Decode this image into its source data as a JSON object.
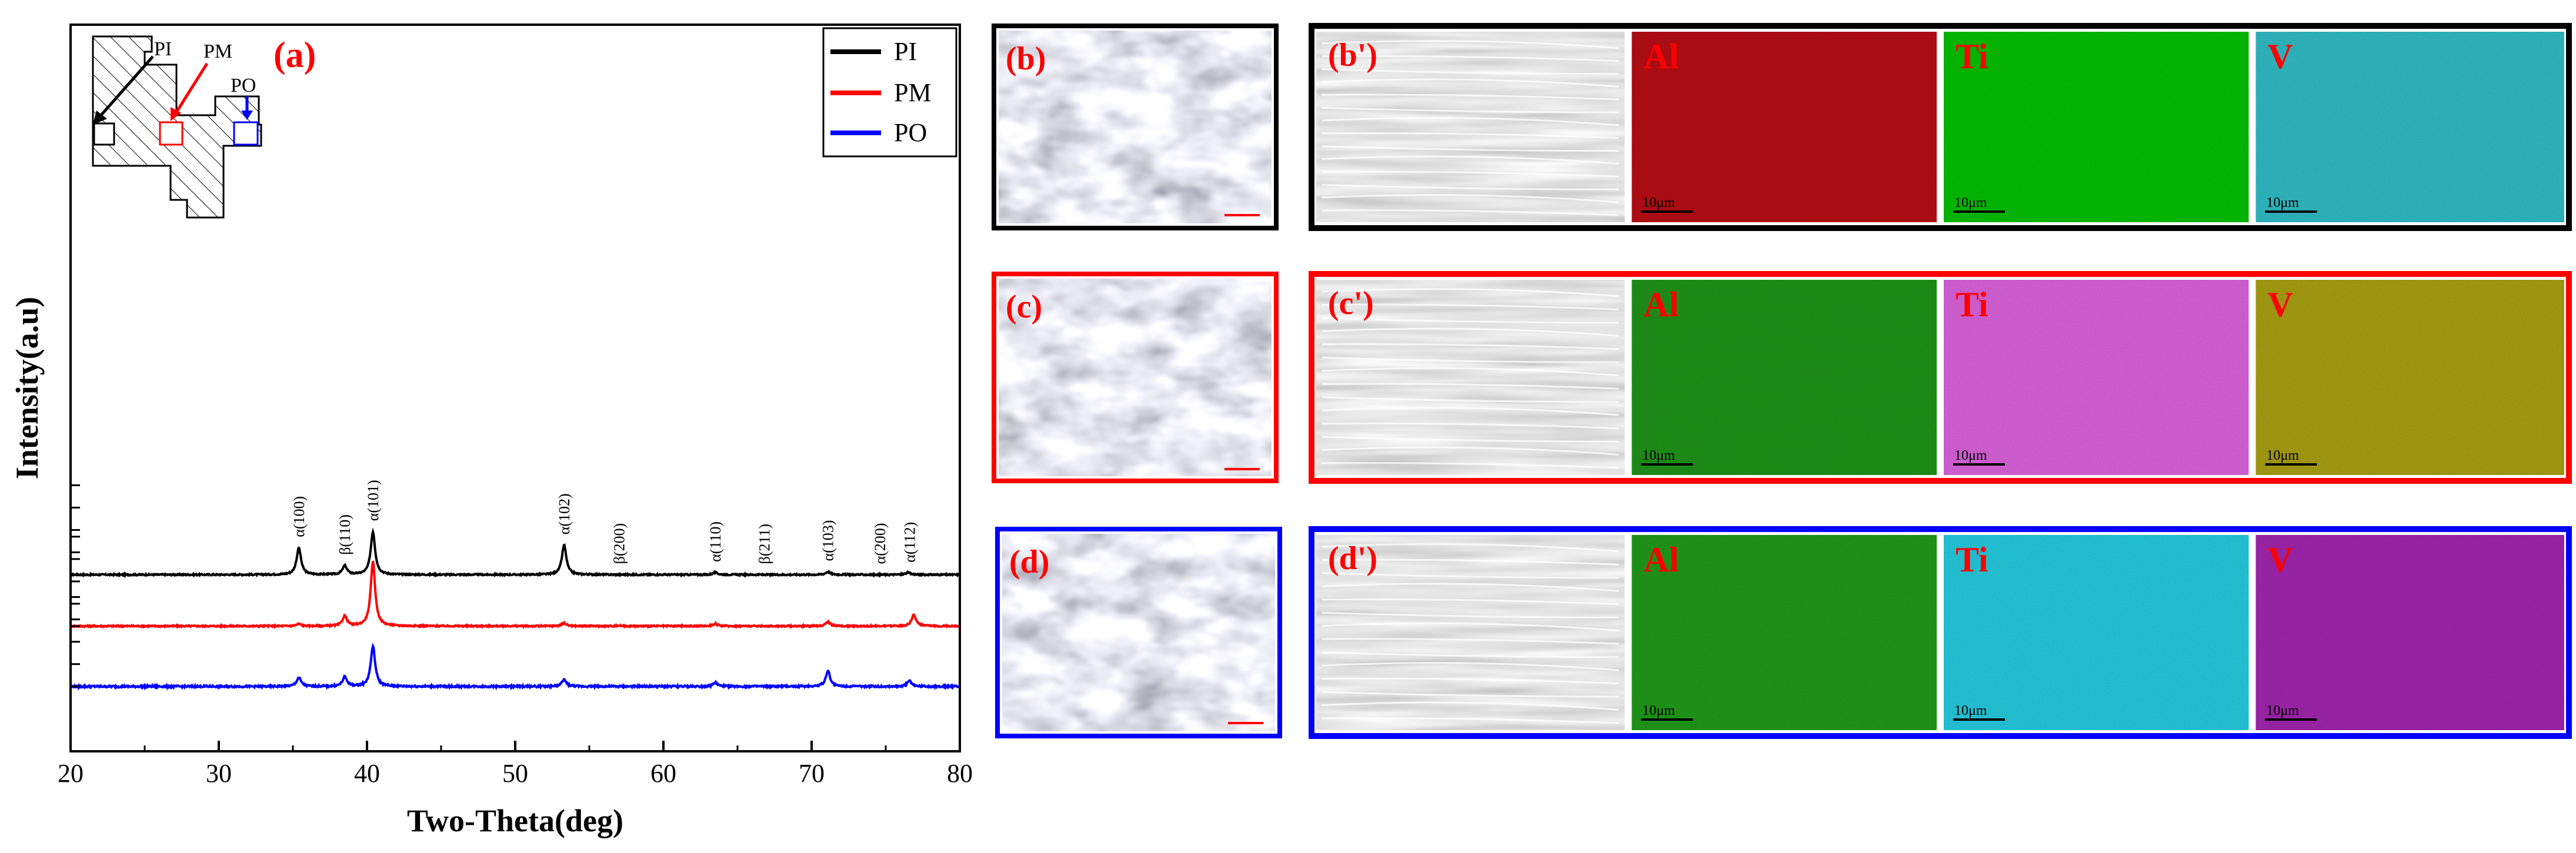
{
  "chart_data": {
    "type": "line",
    "panel_label": "(a)",
    "xlabel": "Two-Theta(deg)",
    "ylabel": "Intensity(a.u)",
    "xlim": [
      20,
      80
    ],
    "x_ticks": [
      "20",
      "30",
      "40",
      "50",
      "60",
      "70",
      "80"
    ],
    "legend_position": "top-right",
    "grid": false,
    "series": [
      {
        "name": "PI",
        "color": "#000000",
        "baseline": 0.79,
        "amplitude": 1.0,
        "noise": 0.15,
        "peaks": [
          [
            35.4,
            1.0
          ],
          [
            38.5,
            0.33
          ],
          [
            40.4,
            1.6
          ],
          [
            53.3,
            1.1
          ],
          [
            63.5,
            0.08
          ],
          [
            71.1,
            0.11
          ],
          [
            76.5,
            0.08
          ]
        ]
      },
      {
        "name": "PM",
        "color": "#ff0000",
        "baseline": 0.56,
        "amplitude": 1.0,
        "noise": 0.15,
        "peaks": [
          [
            35.4,
            0.08
          ],
          [
            38.5,
            0.37
          ],
          [
            40.4,
            2.4
          ],
          [
            53.3,
            0.11
          ],
          [
            57.0,
            0.02
          ],
          [
            63.5,
            0.09
          ],
          [
            71.1,
            0.16
          ],
          [
            76.9,
            0.42
          ]
        ]
      },
      {
        "name": "PO",
        "color": "#0000ff",
        "baseline": 0.29,
        "amplitude": 1.0,
        "noise": 0.2,
        "peaks": [
          [
            35.4,
            0.33
          ],
          [
            38.5,
            0.35
          ],
          [
            40.4,
            1.5
          ],
          [
            53.3,
            0.25
          ],
          [
            63.5,
            0.14
          ],
          [
            71.1,
            0.58
          ],
          [
            76.6,
            0.21
          ]
        ]
      }
    ],
    "peak_labels": [
      {
        "x": 35.4,
        "text": "α(100)"
      },
      {
        "x": 38.5,
        "text": "β(110)"
      },
      {
        "x": 40.4,
        "text": "α(101)"
      },
      {
        "x": 53.3,
        "text": "α(102)"
      },
      {
        "x": 57.0,
        "text": "β(200)"
      },
      {
        "x": 63.5,
        "text": "α(110)"
      },
      {
        "x": 66.8,
        "text": "β(211)"
      },
      {
        "x": 71.1,
        "text": "α(103)"
      },
      {
        "x": 74.6,
        "text": "α(200)"
      },
      {
        "x": 76.6,
        "text": "α(112)"
      }
    ]
  },
  "inset": {
    "labels": [
      "PI",
      "PM",
      "PO"
    ]
  },
  "panels": {
    "b": {
      "label": "(b)",
      "color": "#000000"
    },
    "c": {
      "label": "(c)",
      "color": "#ff0000"
    },
    "d": {
      "label": "(d)",
      "color": "#0000ff"
    },
    "b2": {
      "label": "(b')",
      "color": "#000000",
      "maps": [
        {
          "element": "Al",
          "color": "#b00d14"
        },
        {
          "element": "Ti",
          "color": "#05b905"
        },
        {
          "element": "V",
          "color": "#2fb5be"
        }
      ]
    },
    "c2": {
      "label": "(c')",
      "color": "#ff0000",
      "maps": [
        {
          "element": "Al",
          "color": "#1e8e18"
        },
        {
          "element": "Ti",
          "color": "#d35fd3"
        },
        {
          "element": "V",
          "color": "#a39a13"
        }
      ]
    },
    "d2": {
      "label": "(d')",
      "color": "#0000ff",
      "maps": [
        {
          "element": "Al",
          "color": "#1f9418"
        },
        {
          "element": "Ti",
          "color": "#24c3d6"
        },
        {
          "element": "V",
          "color": "#9b24a8"
        }
      ]
    },
    "scale_bar": "10μm"
  }
}
